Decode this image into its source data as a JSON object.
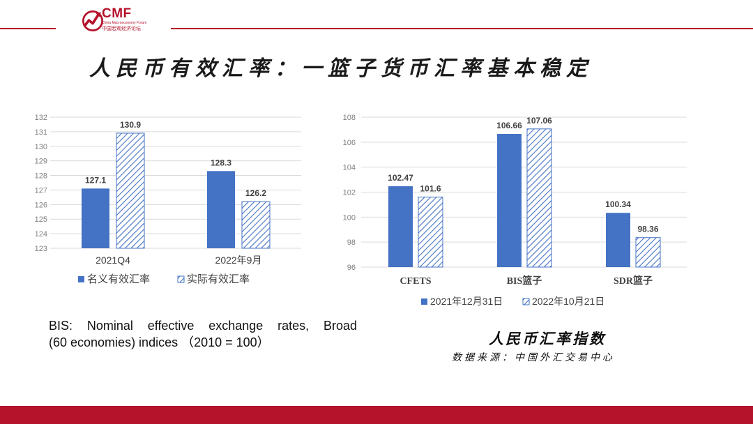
{
  "header": {
    "logo_text": "CMF",
    "logo_subtitle": "China Macroeconomy Forum",
    "logo_cn": "中国宏观经济论坛",
    "brand_color": "#b5122b"
  },
  "title": "人民币有效汇率：一篮子货币汇率基本稳定",
  "chart_data": [
    {
      "type": "bar",
      "categories": [
        "2021Q4",
        "2022年9月"
      ],
      "series": [
        {
          "name": "名义有效汇率",
          "values": [
            127.1,
            128.3
          ],
          "color": "#4472c4",
          "style": "solid"
        },
        {
          "name": "实际有效汇率",
          "values": [
            130.9,
            126.2
          ],
          "color": "#4472c4",
          "style": "hatched"
        }
      ],
      "ylim": [
        123,
        132
      ],
      "yticks": [
        "123",
        "124",
        "125",
        "126",
        "127",
        "128",
        "129",
        "130",
        "131",
        "132"
      ],
      "data_labels": [
        [
          "127.1",
          "128.3"
        ],
        [
          "130.9",
          "126.2"
        ]
      ],
      "grid": true,
      "legend": "bottom"
    },
    {
      "type": "bar",
      "categories": [
        "CFETS",
        "BIS篮子",
        "SDR篮子"
      ],
      "series": [
        {
          "name": "2021年12月31日",
          "values": [
            102.47,
            106.66,
            100.34
          ],
          "color": "#4472c4",
          "style": "solid"
        },
        {
          "name": "2022年10月21日",
          "values": [
            101.6,
            107.06,
            98.36
          ],
          "color": "#4472c4",
          "style": "hatched"
        }
      ],
      "ylim": [
        96,
        108
      ],
      "yticks": [
        "96",
        "98",
        "100",
        "102",
        "104",
        "106",
        "108"
      ],
      "data_labels": [
        [
          "102.47",
          "106.66",
          "100.34"
        ],
        [
          "101.6",
          "107.06",
          "98.36"
        ]
      ],
      "grid": true,
      "legend": "bottom"
    }
  ],
  "note": {
    "line1": "BIS: Nominal effective exchange rates, Broad",
    "line2": "(60 economies) indices （2010 = 100）"
  },
  "caption": "人民币汇率指数",
  "source": "数据来源：中国外汇交易中心"
}
